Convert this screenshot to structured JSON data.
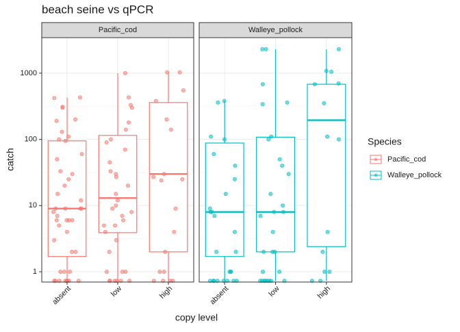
{
  "chart_data": {
    "type": "box",
    "title": "beach seine vs qPCR",
    "x_label": "copy level",
    "y_label": "catch",
    "legend_title": "Species",
    "categories": [
      "absent",
      "low",
      "high"
    ],
    "y_log": true,
    "ylim": [
      0.7,
      3440
    ],
    "yticks": [
      1,
      10,
      100,
      1000
    ],
    "grid": true,
    "series": [
      {
        "name": "Pacific_cod",
        "color": "#f8766d",
        "boxes": [
          {
            "min": 0.73,
            "q1": 1.7,
            "median": 9,
            "q3": 95,
            "max": 430
          },
          {
            "min": 0.73,
            "q1": 3.9,
            "median": 13,
            "q3": 115,
            "max": 1000
          },
          {
            "min": 0.73,
            "q1": 2,
            "median": 30,
            "q3": 360,
            "max": 1030
          }
        ],
        "points": [
          [
            0.73,
            0.73,
            0.73,
            0.73,
            0.73,
            0.73,
            0.73,
            0.73,
            1,
            1,
            1,
            2,
            2,
            3,
            4,
            5,
            6,
            6,
            6,
            6,
            7,
            8,
            9,
            9,
            9,
            9,
            12,
            15,
            20,
            25,
            30,
            33,
            50,
            60,
            95,
            100,
            110,
            130,
            190,
            200,
            300,
            310,
            420,
            430
          ],
          [
            0.73,
            0.73,
            0.73,
            0.73,
            0.73,
            0.73,
            1,
            1,
            1,
            2,
            3,
            4,
            5,
            5,
            6,
            7,
            8,
            9,
            10,
            12,
            15,
            20,
            27,
            30,
            33,
            45,
            70,
            90,
            100,
            140,
            180,
            300,
            330,
            430,
            1000
          ],
          [
            0.73,
            0.73,
            0.73,
            0.73,
            1,
            1,
            2,
            4,
            9,
            24,
            25,
            27,
            30,
            140,
            200,
            380,
            550,
            1030,
            1030
          ]
        ]
      },
      {
        "name": "Walleye_pollock",
        "color": "#00bfc4",
        "boxes": [
          {
            "min": 0.73,
            "q1": 1.7,
            "median": 8,
            "q3": 88,
            "max": 380
          },
          {
            "min": 0.73,
            "q1": 2,
            "median": 8,
            "q3": 108,
            "max": 2300
          },
          {
            "min": 0.73,
            "q1": 2.4,
            "median": 195,
            "q3": 680,
            "max": 2300
          }
        ],
        "points": [
          [
            0.73,
            0.73,
            0.73,
            0.73,
            0.73,
            0.73,
            0.73,
            0.73,
            1,
            1,
            1,
            2,
            2,
            4,
            7,
            8,
            8,
            9,
            15,
            25,
            40,
            60,
            100,
            110,
            360,
            380
          ],
          [
            0.73,
            0.73,
            0.73,
            0.73,
            0.73,
            0.73,
            0.73,
            0.73,
            1,
            1,
            2,
            2,
            2,
            4,
            7,
            8,
            8,
            10,
            15,
            30,
            40,
            50,
            100,
            110,
            340,
            360,
            680,
            2300,
            2300
          ],
          [
            0.73,
            0.73,
            1,
            1,
            2,
            4,
            100,
            110,
            350,
            680,
            700,
            1050,
            1080,
            2300
          ]
        ]
      }
    ]
  }
}
